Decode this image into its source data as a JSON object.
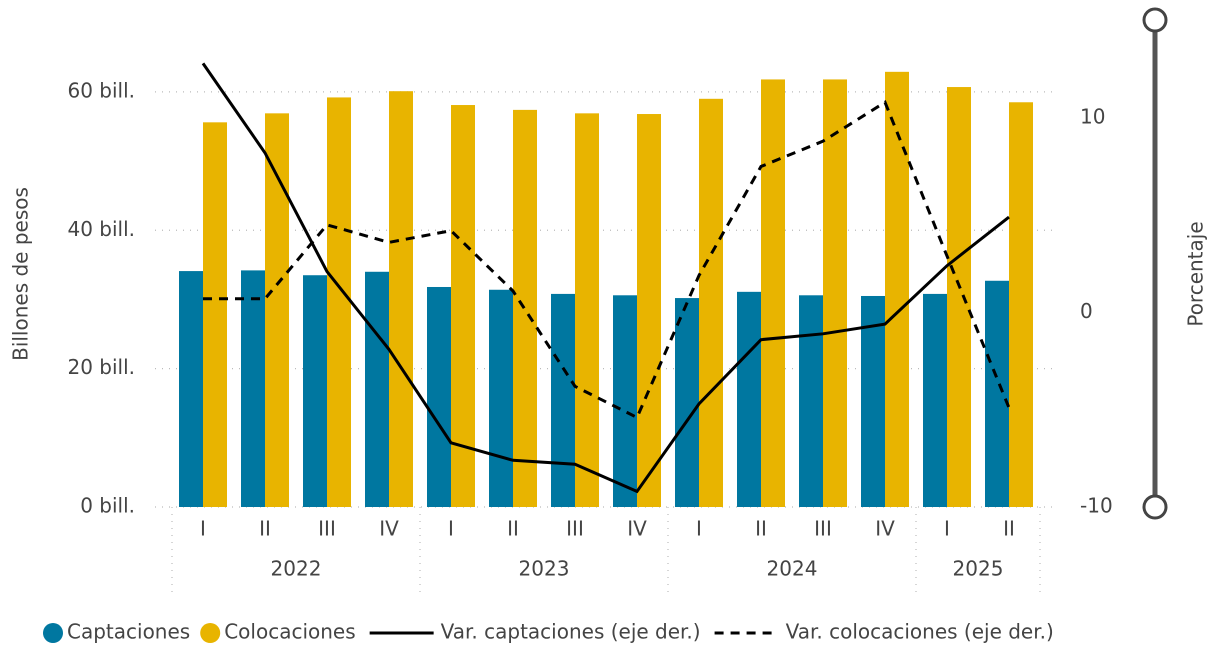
{
  "chart_data": {
    "type": "bar",
    "categories": [
      "I",
      "II",
      "III",
      "IV",
      "I",
      "II",
      "III",
      "IV",
      "I",
      "II",
      "III",
      "IV",
      "I",
      "II"
    ],
    "groups": [
      {
        "label": "2022",
        "span": 4
      },
      {
        "label": "2023",
        "span": 4
      },
      {
        "label": "2024",
        "span": 4
      },
      {
        "label": "2025",
        "span": 2
      }
    ],
    "ylabel": "Billones de pesos",
    "y2label": "Porcentaje",
    "ylim": [
      0,
      67.5
    ],
    "yticks": [
      {
        "value": 0,
        "label": "0 bill."
      },
      {
        "value": 20,
        "label": "20 bill."
      },
      {
        "value": 40,
        "label": "40 bill."
      },
      {
        "value": 60,
        "label": "60 bill."
      }
    ],
    "y2lim": [
      -10,
      14
    ],
    "y2ticks": [
      -10,
      0,
      10
    ],
    "grid": true,
    "series": [
      {
        "name": "Captaciones",
        "type": "bar",
        "color": "#0077a0",
        "values": [
          34.1,
          34.2,
          33.5,
          34.0,
          31.8,
          31.4,
          30.8,
          30.6,
          30.2,
          31.1,
          30.6,
          30.5,
          30.8,
          32.7
        ]
      },
      {
        "name": "Colocaciones",
        "type": "bar",
        "color": "#e8b400",
        "values": [
          55.6,
          56.9,
          59.2,
          60.1,
          58.1,
          57.4,
          56.9,
          56.8,
          59.0,
          61.8,
          61.8,
          62.9,
          60.7,
          58.5
        ]
      },
      {
        "name": "Var. captaciones (eje der.)",
        "type": "line",
        "axis": "y2",
        "color": "#000000",
        "dash": false,
        "values": [
          12.8,
          8.2,
          2.1,
          -1.9,
          -6.7,
          -7.6,
          -7.8,
          -9.2,
          -4.7,
          -1.4,
          -1.1,
          -0.6,
          2.4,
          4.9
        ]
      },
      {
        "name": "Var. colocaciones (eje der.)",
        "type": "line",
        "axis": "y2",
        "color": "#000000",
        "dash": true,
        "values": [
          0.7,
          0.7,
          4.5,
          3.6,
          4.2,
          1.1,
          -3.8,
          -5.4,
          1.9,
          7.5,
          8.8,
          10.8,
          2.9,
          -4.9
        ]
      }
    ]
  }
}
